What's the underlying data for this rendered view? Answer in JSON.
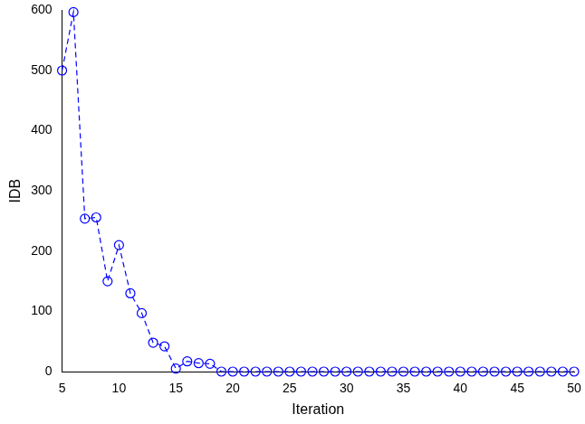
{
  "chart_data": {
    "type": "line",
    "x": [
      5,
      6,
      7,
      8,
      9,
      10,
      11,
      12,
      13,
      14,
      15,
      16,
      17,
      18,
      19,
      20,
      21,
      22,
      23,
      24,
      25,
      26,
      27,
      28,
      29,
      30,
      31,
      32,
      33,
      34,
      35,
      36,
      37,
      38,
      39,
      40,
      41,
      42,
      43,
      44,
      45,
      46,
      47,
      48,
      49,
      50
    ],
    "values": [
      500,
      597,
      254,
      256,
      150,
      210,
      130,
      97,
      48,
      42,
      5,
      17,
      14,
      13,
      0,
      0,
      0,
      0,
      0,
      0,
      0,
      0,
      0,
      0,
      0,
      0,
      0,
      0,
      0,
      0,
      0,
      0,
      0,
      0,
      0,
      0,
      0,
      0,
      0,
      0,
      0,
      0,
      0,
      0,
      0,
      0
    ],
    "x_label": "Iteration",
    "y_label": "IDB",
    "xlim": [
      5,
      50
    ],
    "xticks": [
      5,
      10,
      15,
      20,
      25,
      30,
      35,
      40,
      45,
      50
    ],
    "ylim": [
      0,
      600
    ],
    "yticks": [
      0,
      100,
      200,
      300,
      400,
      500,
      600
    ],
    "color": "#0000ff",
    "marker": "circle",
    "line_style": "dashed",
    "grid": false
  }
}
